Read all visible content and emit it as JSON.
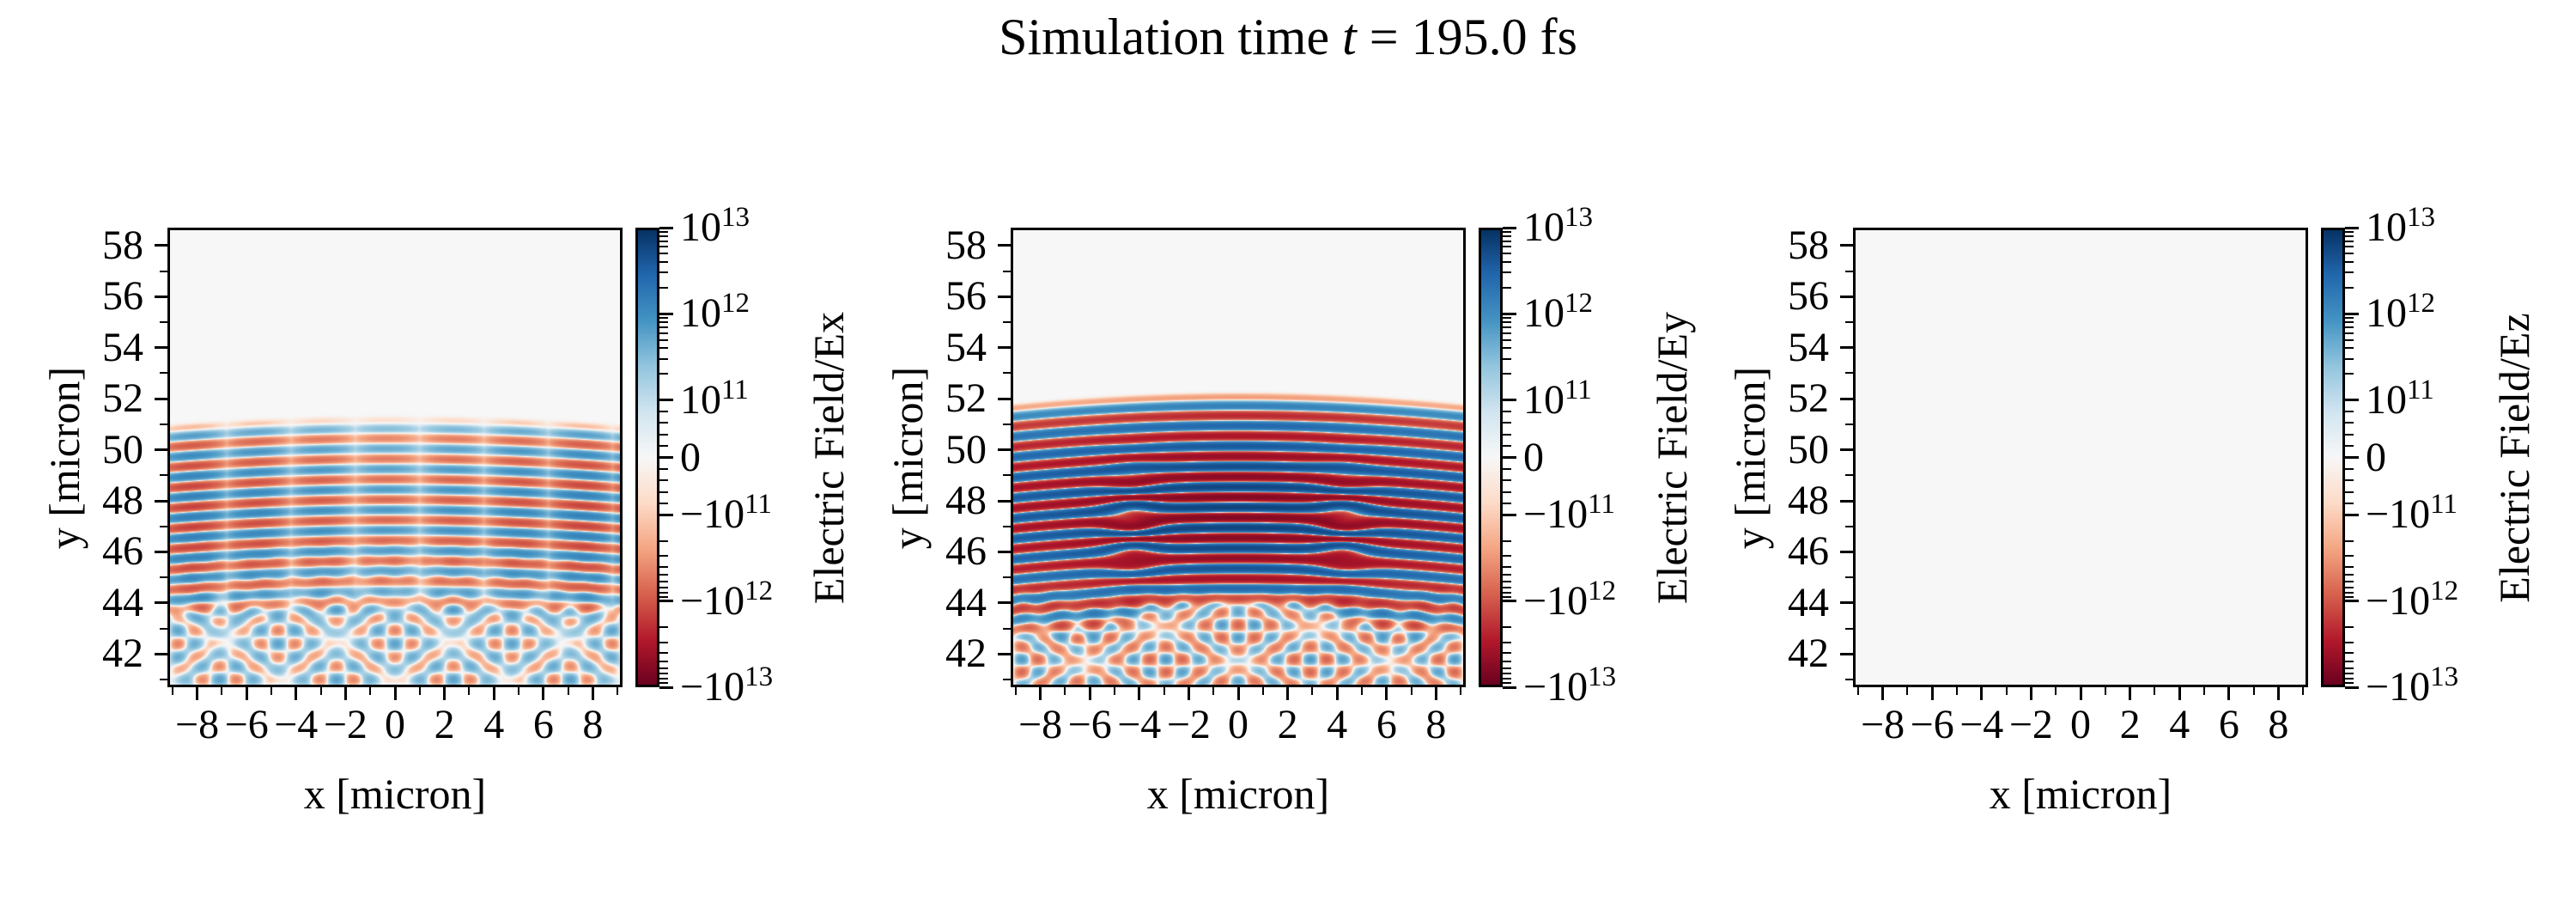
{
  "title": {
    "pre": "Simulation time ",
    "var": "t",
    "post": " = 195.0 fs"
  },
  "colors": {
    "background": "#ffffff",
    "frame": "#000000",
    "rdbu_stops": [
      "#67001f",
      "#b2182b",
      "#d6604d",
      "#f4a582",
      "#fddbc7",
      "#f7f7f7",
      "#d1e5f0",
      "#92c5de",
      "#4393c3",
      "#2166ac",
      "#053061"
    ],
    "zero_field": "#f7f7f7"
  },
  "chart_data": [
    {
      "type": "heatmap",
      "field": "Ex",
      "xlabel": "x [micron]",
      "ylabel": "y [micron]",
      "colorbar_label": "Electric Field/Ex",
      "xlim": [
        -9.2,
        9.2
      ],
      "ylim": [
        40.7,
        58.7
      ],
      "xticks": [
        -8,
        -6,
        -4,
        -2,
        0,
        2,
        4,
        6,
        8
      ],
      "yticks": [
        42,
        44,
        46,
        48,
        50,
        52,
        54,
        56,
        58
      ],
      "minor_tick_step": 1,
      "colormap": "RdBu (blue = positive)",
      "scale": {
        "type": "symlog",
        "linthresh": 100000000000.0,
        "vmin": -10000000000000.0,
        "vmax": 10000000000000.0,
        "linear_fraction": 0.25,
        "decades_per_side": 2
      },
      "colorbar_tick_labels": [
        "10^13",
        "10^12",
        "10^11",
        "0",
        "−10^11",
        "−10^12",
        "−10^13"
      ],
      "colorbar_tick_values": [
        10000000000000.0,
        1000000000000.0,
        100000000000.0,
        0,
        -100000000000.0,
        -1000000000000.0,
        -10000000000000.0
      ],
      "description": "Moderate red/blue horizontal interference stripes between y≈44 and y≈51.5 with white vertical modulation gaps, stronger near the side edges, uniform near-zero field above y≈51.5, crossing diagonal wake fan below y≈44.",
      "pattern": {
        "kind": "stripes_wake",
        "stripe_wavelength_um": 0.8,
        "stripe_top_y_um": 51.45,
        "stripe_arc_um": 0.35,
        "envelope_peak_y_um": 47.3,
        "envelope_sigma_um": 4.2,
        "amplitude": 1600000000000.0,
        "x_modulation": {
          "period_um": 2.6,
          "offset_um": 0.3,
          "min": 0.3,
          "exponent": 0.8
        },
        "edge_boost": {
          "base": 0.45,
          "gain": 0.55,
          "exponent": 1.3
        },
        "bottom_cut_y_um": 43.0,
        "wake": {
          "origin_y_um": 43.6,
          "slope": 0.6,
          "wavelength_um": 0.95,
          "amp": 160000000000.0,
          "slope2": 1.12,
          "wavelength2_um": 1.32,
          "amp2": 110000000000.0,
          "bias": 55000000000.0,
          "top_fade_y_um": 44.8,
          "cross_fade_y_um": 47.4
        }
      }
    },
    {
      "type": "heatmap",
      "field": "Ey",
      "xlabel": "x [micron]",
      "ylabel": "y [micron]",
      "colorbar_label": "Electric Field/Ey",
      "xlim": [
        -9.2,
        9.2
      ],
      "ylim": [
        40.7,
        58.7
      ],
      "xticks": [
        -8,
        -6,
        -4,
        -2,
        0,
        2,
        4,
        6,
        8
      ],
      "yticks": [
        42,
        44,
        46,
        48,
        50,
        52,
        54,
        56,
        58
      ],
      "minor_tick_step": 1,
      "colormap": "RdBu (blue = positive)",
      "scale": {
        "type": "symlog",
        "linthresh": 100000000000.0,
        "vmin": -10000000000000.0,
        "vmax": 10000000000000.0,
        "linear_fraction": 0.25,
        "decades_per_side": 2
      },
      "colorbar_tick_labels": [
        "10^13",
        "10^12",
        "10^11",
        "0",
        "−10^11",
        "−10^12",
        "−10^13"
      ],
      "colorbar_tick_values": [
        10000000000000.0,
        1000000000000.0,
        100000000000.0,
        0,
        -100000000000.0,
        -1000000000000.0,
        -10000000000000.0
      ],
      "description": "Strongly saturated alternating dark red/dark blue horizontal standing-wave bands between y≈44 and y≈52.3 with thin white separators and phase-slip defects near x≈±4, uniform near-zero field above, crossing diagonal wake fan below y≈44.",
      "pattern": {
        "kind": "stripes_wake",
        "stripe_wavelength_um": 0.8,
        "stripe_top_y_um": 52.35,
        "stripe_arc_um": 0.45,
        "envelope_peak_y_um": 47.6,
        "envelope_sigma_um": 3.6,
        "amplitude": 6500000000000.0,
        "x_modulation": {
          "cos_period_um": 9.2,
          "base": 0.8,
          "depth": 0.2
        },
        "defect": {
          "x_um": 4.3,
          "sigma_x": 1.2,
          "sigma_y": 2.2,
          "y_um": 46.8,
          "strength": 2.0,
          "wavelength_um": 1.7
        },
        "bottom_cut_y_um": 43.6,
        "bottom_cut_rise_um": 1.4,
        "wake": {
          "origin_y_um": 43.8,
          "slope": 0.62,
          "wavelength_um": 0.9,
          "amp": 230000000000.0,
          "slope2": 1.15,
          "wavelength2_um": 1.35,
          "amp2": 150000000000.0,
          "bias": -40000000000.0,
          "top_fade_y_um": 45.0,
          "cross_fade_y_um": 45.5
        }
      }
    },
    {
      "type": "heatmap",
      "field": "Ez",
      "xlabel": "x [micron]",
      "ylabel": "y [micron]",
      "colorbar_label": "Electric Field/Ez",
      "xlim": [
        -9.2,
        9.2
      ],
      "ylim": [
        40.7,
        58.7
      ],
      "xticks": [
        -8,
        -6,
        -4,
        -2,
        0,
        2,
        4,
        6,
        8
      ],
      "yticks": [
        42,
        44,
        46,
        48,
        50,
        52,
        54,
        56,
        58
      ],
      "minor_tick_step": 1,
      "colormap": "RdBu (blue = positive)",
      "scale": {
        "type": "symlog",
        "linthresh": 100000000000.0,
        "vmin": -10000000000000.0,
        "vmax": 10000000000000.0,
        "linear_fraction": 0.25,
        "decades_per_side": 2
      },
      "colorbar_tick_labels": [
        "10^13",
        "10^12",
        "10^11",
        "0",
        "−10^11",
        "−10^12",
        "−10^13"
      ],
      "colorbar_tick_values": [
        10000000000000.0,
        1000000000000.0,
        100000000000.0,
        0,
        -100000000000.0,
        -1000000000000.0,
        -10000000000000.0
      ],
      "description": "Uniform near-zero field over the whole panel (flat light-gray map).",
      "pattern": {
        "kind": "uniform_zero"
      }
    }
  ]
}
